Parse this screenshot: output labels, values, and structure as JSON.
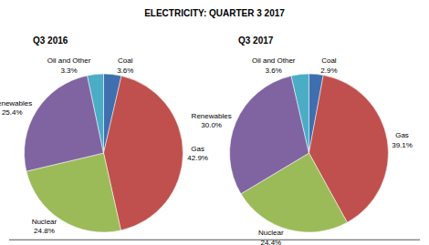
{
  "title": "ELECTRICITY: QUARTER 3 2017",
  "chart_data": [
    {
      "type": "pie",
      "title": "Q3 2016",
      "categories": [
        "Coal",
        "Gas",
        "Nuclear",
        "Renewables",
        "Oil and Other"
      ],
      "values": [
        3.6,
        42.9,
        24.8,
        25.4,
        3.3
      ],
      "value_labels": [
        "3.6%",
        "42.9%",
        "24.8%",
        "25.4%",
        "3.3%"
      ],
      "colors": [
        "#3f6fae",
        "#c0504d",
        "#9bbb59",
        "#8064a2",
        "#4bacc6"
      ],
      "data_labels": true
    },
    {
      "type": "pie",
      "title": "Q3 2017",
      "categories": [
        "Coal",
        "Gas",
        "Nuclear",
        "Renewables",
        "Oil and Other"
      ],
      "values": [
        2.9,
        39.1,
        24.4,
        30.0,
        3.6
      ],
      "value_labels": [
        "2.9%",
        "39.1%",
        "24.4%",
        "30.0%",
        "3.6%"
      ],
      "colors": [
        "#3f6fae",
        "#c0504d",
        "#9bbb59",
        "#8064a2",
        "#4bacc6"
      ],
      "data_labels": true
    }
  ]
}
